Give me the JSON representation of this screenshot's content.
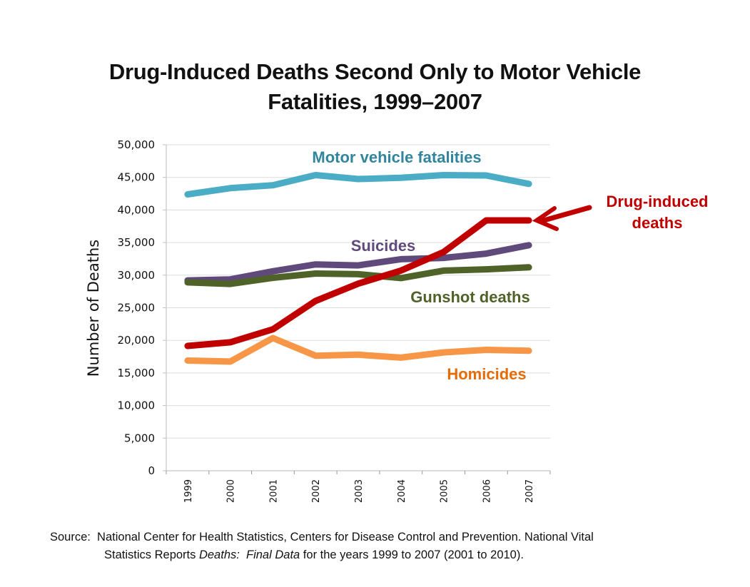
{
  "title": {
    "line1": "Drug-Induced Deaths Second Only to Motor Vehicle",
    "line2": "Fatalities, 1999–2007"
  },
  "source": {
    "prefix": "Source:",
    "line1_text": "National Center for Health Statistics, Centers for Disease Control and Prevention.  National Vital",
    "line2_a": "Statistics Reports ",
    "line2_italic1": "Deaths:",
    "line2_gap": "  ",
    "line2_italic2": "Final Data",
    "line2_b": " for the years 1999 to 2007 (2001 to 2010)."
  },
  "chart_data": {
    "type": "line",
    "title": "Drug-Induced Deaths Second Only to Motor Vehicle Fatalities, 1999–2007",
    "xlabel": "",
    "ylabel": "Number of Deaths",
    "ylim": [
      0,
      50000
    ],
    "yticks": [
      0,
      5000,
      10000,
      15000,
      20000,
      25000,
      30000,
      35000,
      40000,
      45000,
      50000
    ],
    "ytick_labels": [
      "0",
      "5,000",
      "10,000",
      "15,000",
      "20,000",
      "25,000",
      "30,000",
      "35,000",
      "40,000",
      "45,000",
      "50,000"
    ],
    "grid": true,
    "legend": "inline labels",
    "categories": [
      "1999",
      "2000",
      "2001",
      "2002",
      "2003",
      "2004",
      "2005",
      "2006",
      "2007"
    ],
    "series": [
      {
        "name": "Motor vehicle fatalities",
        "color": "#4bacc6",
        "label_color": "#31859c",
        "values": [
          42400,
          43350,
          43800,
          45350,
          44750,
          44950,
          45350,
          45300,
          44000
        ]
      },
      {
        "name": "Suicides",
        "color": "#604a7b",
        "label_color": "#604a7b",
        "values": [
          29200,
          29350,
          30600,
          31650,
          31500,
          32450,
          32650,
          33300,
          34600
        ]
      },
      {
        "name": "Gunshot deaths",
        "color": "#4f6228",
        "label_color": "#4f6228",
        "values": [
          28900,
          28650,
          29600,
          30250,
          30150,
          29550,
          30700,
          30900,
          31200
        ]
      },
      {
        "name": "Drug-induced deaths",
        "color": "#c00000",
        "label_color": "#c00000",
        "values": [
          19150,
          19700,
          21700,
          26050,
          28700,
          30700,
          33550,
          38400,
          38400
        ]
      },
      {
        "name": "Homicides",
        "color": "#f79646",
        "label_color": "#e46c0a",
        "values": [
          16900,
          16750,
          20350,
          17650,
          17800,
          17350,
          18150,
          18550,
          18400
        ]
      }
    ],
    "annotations": [
      {
        "text": "Motor vehicle fatalities",
        "series": "Motor vehicle fatalities"
      },
      {
        "text": "Suicides",
        "series": "Suicides"
      },
      {
        "text": "Gunshot deaths",
        "series": "Gunshot deaths"
      },
      {
        "text": "Homicides",
        "series": "Homicides"
      },
      {
        "text": "Drug-induced deaths",
        "lines": [
          "Drug-induced",
          "deaths"
        ],
        "series": "Drug-induced deaths",
        "arrow": true
      }
    ]
  }
}
